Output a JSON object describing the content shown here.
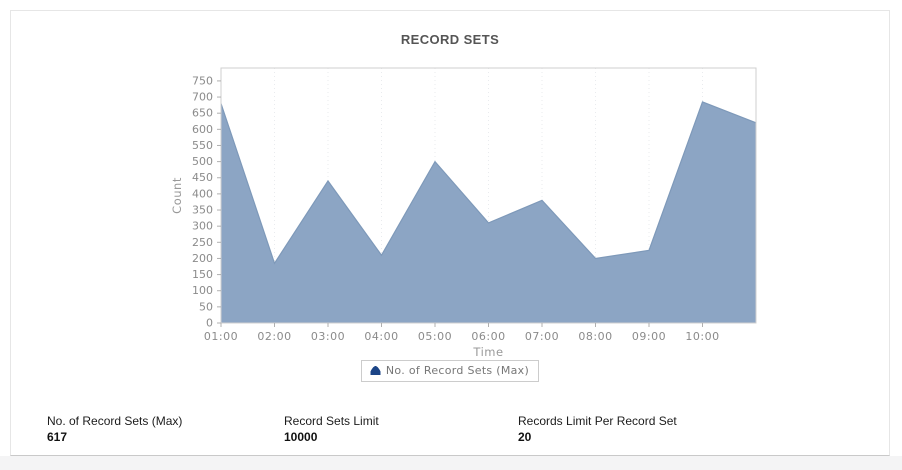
{
  "card": {
    "title": "RECORD SETS"
  },
  "chart_data": {
    "type": "area",
    "title": "RECORD SETS",
    "series": [
      {
        "name": "No. of Record Sets (Max)",
        "values": [
          680,
          185,
          440,
          210,
          500,
          310,
          380,
          200,
          225,
          685,
          620
        ]
      }
    ],
    "x_tick_labels": [
      "01:00",
      "02:00",
      "03:00",
      "04:00",
      "05:00",
      "06:00",
      "07:00",
      "08:00",
      "09:00",
      "10:00"
    ],
    "note_last_point_unlabeled": "11th point sits at the right plot edge past 10:00",
    "xlabel": "Time",
    "ylabel": "Count",
    "ylim": [
      0,
      790
    ],
    "y_ticks": [
      0,
      50,
      100,
      150,
      200,
      250,
      300,
      350,
      400,
      450,
      500,
      550,
      600,
      650,
      700,
      750
    ],
    "grid": "faint-vertical-dashed",
    "legend_position": "bottom",
    "colors": {
      "area_fill": "#8ca5c4",
      "area_stroke": "#7e99b9",
      "plot_border": "#cfcfcf",
      "tick_text": "#8b8b8b",
      "axis_title_text": "#999999",
      "gridline": "#e9ebee",
      "legend_marker": "#1c4587"
    }
  },
  "legend": {
    "label": "No. of Record Sets (Max)"
  },
  "stats": [
    {
      "label": "No. of Record Sets (Max)",
      "value": "617"
    },
    {
      "label": "Record Sets Limit",
      "value": "10000"
    },
    {
      "label": "Records Limit Per Record Set",
      "value": "20"
    }
  ]
}
